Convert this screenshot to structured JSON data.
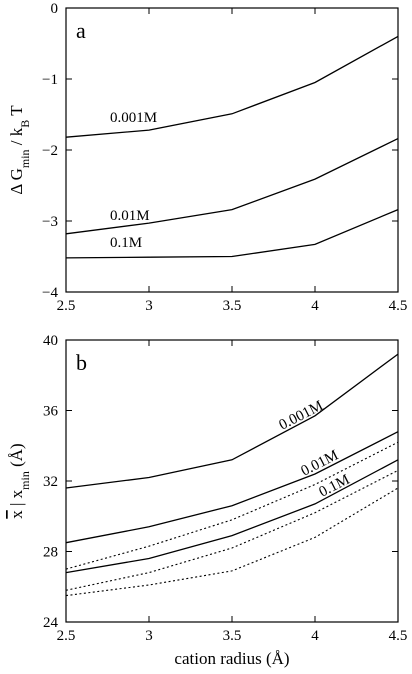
{
  "chart_data": [
    {
      "type": "line",
      "panel": "a",
      "xlabel": "",
      "ylabel": "Δ G_min / k_B T",
      "ylabel_parts": {
        "prefix": "Δ G",
        "sub1": "min",
        "mid": " / k",
        "sub2": "B",
        "suffix": " T"
      },
      "xlim": [
        2.5,
        4.5
      ],
      "ylim": [
        -4,
        0
      ],
      "xticks": [
        2.5,
        3,
        3.5,
        4,
        4.5
      ],
      "xtick_labels": [
        "2.5",
        "3",
        "3.5",
        "4",
        "4.5"
      ],
      "yticks": [
        -4,
        -3,
        -2,
        -1,
        0
      ],
      "ytick_labels": [
        "−4",
        "−3",
        "−2",
        "−1",
        "0"
      ],
      "x": [
        2.5,
        3,
        3.5,
        4,
        4.5
      ],
      "series": [
        {
          "label": "0.001M",
          "style": "solid",
          "values": [
            -1.82,
            -1.72,
            -1.49,
            -1.05,
            -0.4
          ]
        },
        {
          "label": "0.01M",
          "style": "solid",
          "values": [
            -3.18,
            -3.03,
            -2.84,
            -2.41,
            -1.84
          ]
        },
        {
          "label": "0.1M",
          "style": "solid",
          "values": [
            -3.52,
            -3.51,
            -3.5,
            -3.33,
            -2.84
          ]
        }
      ]
    },
    {
      "type": "line",
      "panel": "b",
      "xlabel": "cation radius (Å)",
      "ylabel": "x̄ | x_min (Å)",
      "ylabel_parts": {
        "bar_var": "x",
        "sep": " | x",
        "sub": "min",
        "suffix": " (Å)"
      },
      "xlim": [
        2.5,
        4.5
      ],
      "ylim": [
        24,
        40
      ],
      "xticks": [
        2.5,
        3,
        3.5,
        4,
        4.5
      ],
      "xtick_labels": [
        "2.5",
        "3",
        "3.5",
        "4",
        "4.5"
      ],
      "yticks": [
        24,
        28,
        32,
        36,
        40
      ],
      "ytick_labels": [
        "24",
        "28",
        "32",
        "36",
        "40"
      ],
      "x": [
        2.5,
        3,
        3.5,
        4,
        4.5
      ],
      "series": [
        {
          "label": "0.001M",
          "style": "solid",
          "values": [
            31.6,
            32.2,
            33.2,
            35.7,
            39.2
          ]
        },
        {
          "label": "0.01M",
          "style": "solid",
          "values": [
            28.5,
            29.4,
            30.6,
            32.4,
            34.8
          ]
        },
        {
          "label": "0.1M",
          "style": "solid",
          "values": [
            26.8,
            27.6,
            28.9,
            30.7,
            33.2
          ]
        },
        {
          "label": "",
          "style": "dotted",
          "values": [
            27.0,
            28.3,
            29.8,
            31.8,
            34.2
          ]
        },
        {
          "label": "",
          "style": "dotted",
          "values": [
            25.8,
            26.8,
            28.2,
            30.2,
            32.6
          ]
        },
        {
          "label": "",
          "style": "dotted",
          "values": [
            25.5,
            26.1,
            26.9,
            28.8,
            31.6
          ]
        }
      ]
    }
  ]
}
